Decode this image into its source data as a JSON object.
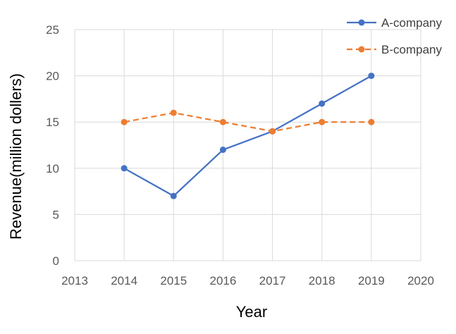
{
  "chart_data": {
    "type": "line",
    "title": "",
    "xlabel": "Year",
    "ylabel": "Revenue(million dollers)",
    "xlim": [
      2013,
      2020
    ],
    "ylim": [
      0,
      25
    ],
    "x_ticks": [
      2013,
      2014,
      2015,
      2016,
      2017,
      2018,
      2019,
      2020
    ],
    "y_ticks": [
      0,
      5,
      10,
      15,
      20,
      25
    ],
    "grid": "both",
    "legend_position": "top-right",
    "x": [
      2014,
      2015,
      2016,
      2017,
      2018,
      2019
    ],
    "series": [
      {
        "name": "A-company",
        "values": [
          10,
          7,
          12,
          14,
          17,
          20
        ],
        "color": "#4472C4",
        "line_style": "solid",
        "marker": "circle"
      },
      {
        "name": "B-company",
        "values": [
          15,
          16,
          15,
          14,
          15,
          15
        ],
        "color": "#ED7D31",
        "line_style": "dashed",
        "marker": "circle"
      }
    ]
  }
}
